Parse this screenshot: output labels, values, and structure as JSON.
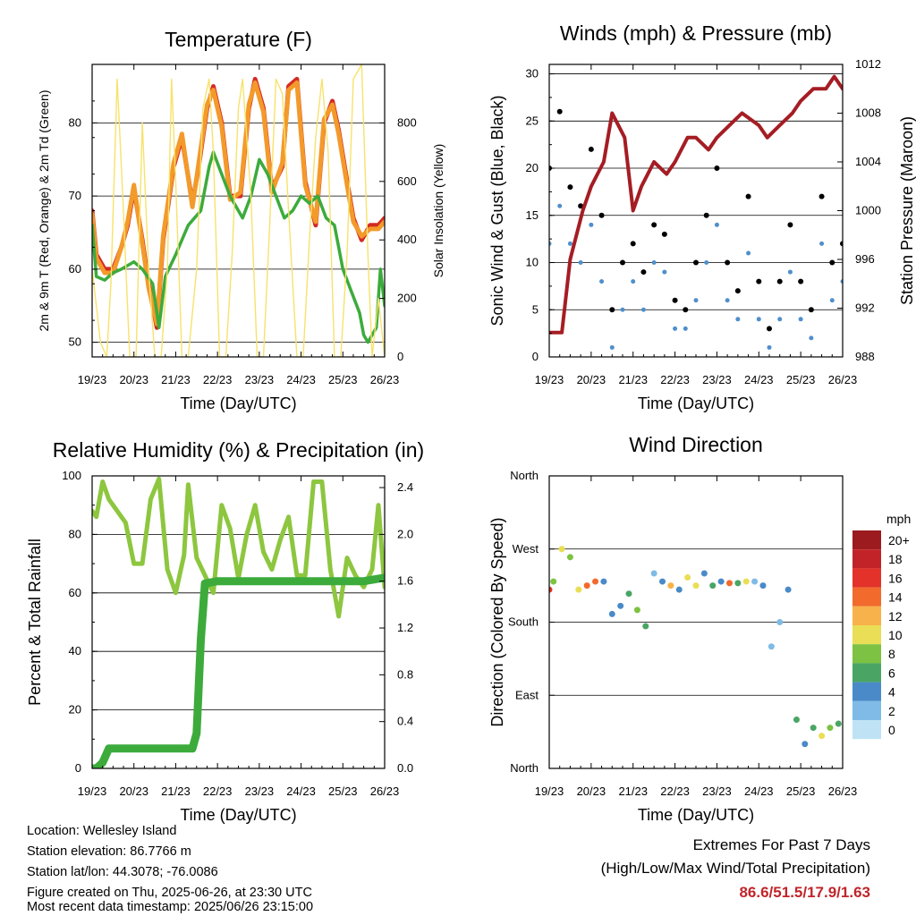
{
  "info": {
    "location": "Location: Wellesley Island",
    "elevation": "Station elevation: 86.7766 m",
    "latlon": "Station lat/lon: 44.3078; -76.0086",
    "created": "Figure created on Thu, 2025-06-26, at 23:30 UTC",
    "recent": "Most recent data timestamp: 2025/06/26 23:15:00"
  },
  "extremes": {
    "title": "Extremes For Past 7 Days",
    "subtitle": "(High/Low/Max Wind/Total Precipitation)",
    "values": "86.6/51.5/17.9/1.63",
    "color": "#c0252a"
  },
  "chart_data": [
    {
      "type": "line",
      "title": "Temperature (F)",
      "xlabel": "Time (Day/UTC)",
      "ylabel": "2m & 9m T (Red, Orange) & 2m Td (Green)",
      "y2label": "Solar Insolation (Yellow)",
      "categories": [
        "19/23",
        "20/23",
        "21/23",
        "22/23",
        "23/23",
        "24/23",
        "25/23",
        "26/23"
      ],
      "ylim": [
        48,
        88
      ],
      "yticks": [
        "50",
        "60",
        "70",
        "80"
      ],
      "y2lim": [
        0,
        1000
      ],
      "y2ticks": [
        "0",
        "200",
        "400",
        "600",
        "800"
      ],
      "grid": true,
      "series": [
        {
          "color": "#d42a22",
          "x": [
            0,
            0.1,
            0.3,
            0.5,
            0.7,
            0.85,
            1.0,
            1.2,
            1.35,
            1.55,
            1.7,
            1.95,
            2.15,
            2.4,
            2.55,
            2.75,
            2.9,
            3.1,
            3.3,
            3.55,
            3.75,
            3.9,
            4.1,
            4.3,
            4.55,
            4.7,
            4.9,
            5.1,
            5.35,
            5.55,
            5.75,
            5.9,
            6.1,
            6.25,
            6.45,
            6.65,
            6.85,
            7.0
          ],
          "y": [
            68,
            62,
            60,
            60,
            63,
            66,
            71,
            64,
            58,
            52,
            64,
            74,
            78,
            69,
            74,
            82,
            85,
            80,
            70,
            70,
            82,
            86,
            82,
            71,
            74,
            85,
            86,
            72,
            66,
            80,
            83,
            79,
            72,
            67,
            64,
            66,
            66,
            67
          ]
        },
        {
          "color": "#f39a2a",
          "x": [
            0,
            0.1,
            0.3,
            0.5,
            0.7,
            0.85,
            1.0,
            1.2,
            1.35,
            1.55,
            1.7,
            1.95,
            2.15,
            2.4,
            2.55,
            2.75,
            2.9,
            3.1,
            3.3,
            3.55,
            3.75,
            3.9,
            4.1,
            4.3,
            4.55,
            4.7,
            4.9,
            5.1,
            5.35,
            5.55,
            5.75,
            5.9,
            6.1,
            6.25,
            6.45,
            6.65,
            6.85,
            7.0
          ],
          "y": [
            67.5,
            61.5,
            59.5,
            59.5,
            63,
            66.5,
            71.5,
            63.5,
            57.5,
            52.5,
            64.5,
            74.5,
            78.5,
            68.5,
            74.5,
            82.5,
            84.5,
            79.5,
            69.5,
            70.5,
            82.5,
            85.5,
            81.5,
            70.5,
            74.5,
            84.5,
            85.5,
            71.5,
            66.5,
            80.5,
            82.5,
            78.5,
            71.5,
            66.5,
            64.5,
            65.5,
            65.5,
            66.5
          ]
        },
        {
          "color": "#3cab3c",
          "x": [
            0,
            0.1,
            0.3,
            0.5,
            0.7,
            1.0,
            1.2,
            1.45,
            1.6,
            1.75,
            2.0,
            2.3,
            2.6,
            2.8,
            2.9,
            3.1,
            3.3,
            3.6,
            3.8,
            4.0,
            4.2,
            4.4,
            4.6,
            4.8,
            5.0,
            5.2,
            5.4,
            5.6,
            5.8,
            6.0,
            6.2,
            6.4,
            6.5,
            6.6,
            6.8,
            6.9,
            7.0
          ],
          "y": [
            66,
            59,
            58.5,
            59.5,
            60,
            61,
            60,
            58,
            52,
            59,
            62,
            66,
            68,
            74,
            76,
            73,
            70,
            67,
            70,
            75,
            73,
            70,
            67,
            68,
            70,
            69,
            70,
            67,
            66,
            60,
            57,
            54,
            51,
            50,
            52,
            60,
            55
          ]
        },
        {
          "color": "#f7e26b",
          "axis": 2,
          "x": [
            0,
            0.2,
            0.35,
            0.45,
            0.6,
            0.75,
            0.9,
            1.05,
            1.2,
            1.35,
            1.5,
            1.65,
            1.8,
            1.9,
            2.0,
            2.15,
            2.3,
            2.5,
            2.65,
            2.8,
            2.9,
            3.05,
            3.2,
            3.35,
            3.5,
            3.6,
            3.8,
            3.95,
            4.1,
            4.25,
            4.4,
            4.55,
            4.7,
            4.9,
            5.05,
            5.2,
            5.35,
            5.5,
            5.65,
            5.8,
            5.95,
            6.1,
            6.25,
            6.45,
            6.6,
            6.7,
            6.85,
            7.0
          ],
          "y": [
            300,
            50,
            0,
            250,
            950,
            500,
            0,
            0,
            800,
            300,
            0,
            0,
            300,
            950,
            600,
            0,
            0,
            300,
            850,
            950,
            700,
            0,
            0,
            350,
            850,
            950,
            550,
            0,
            0,
            450,
            950,
            900,
            500,
            0,
            0,
            400,
            750,
            950,
            700,
            0,
            0,
            350,
            950,
            1000,
            350,
            0,
            200,
            0
          ]
        }
      ]
    },
    {
      "type": "scatter",
      "title": "Winds (mph) & Pressure (mb)",
      "xlabel": "Time (Day/UTC)",
      "ylabel": "Sonic Wind & Gust (Blue, Black)",
      "y2label": "Station Pressure (Maroon)",
      "categories": [
        "19/23",
        "20/23",
        "21/23",
        "22/23",
        "23/23",
        "24/23",
        "25/23",
        "26/23"
      ],
      "ylim": [
        0,
        31
      ],
      "yticks": [
        "0",
        "5",
        "10",
        "15",
        "20",
        "25",
        "30"
      ],
      "y2lim": [
        988,
        1012
      ],
      "y2ticks": [
        "988",
        "992",
        "996",
        "1000",
        "1004",
        "1008",
        "1012"
      ],
      "grid": true,
      "series": [
        {
          "name": "Gust",
          "color": "#000000",
          "x": [
            0,
            0.25,
            0.5,
            0.75,
            1.0,
            1.25,
            1.5,
            1.75,
            2.0,
            2.25,
            2.5,
            2.75,
            3.0,
            3.25,
            3.5,
            3.75,
            4.0,
            4.25,
            4.5,
            4.75,
            5.0,
            5.25,
            5.5,
            5.75,
            6.0,
            6.25,
            6.5,
            6.75,
            7.0
          ],
          "y": [
            20,
            26,
            18,
            16,
            22,
            15,
            5,
            10,
            12,
            9,
            14,
            13,
            6,
            5,
            10,
            15,
            20,
            10,
            7,
            17,
            8,
            3,
            8,
            14,
            8,
            5,
            17,
            10,
            12
          ]
        },
        {
          "name": "Wind",
          "color": "#4f8fcb",
          "x": [
            0,
            0.25,
            0.5,
            0.75,
            1.0,
            1.25,
            1.5,
            1.75,
            2.0,
            2.25,
            2.5,
            2.75,
            3.0,
            3.25,
            3.5,
            3.75,
            4.0,
            4.25,
            4.5,
            4.75,
            5.0,
            5.25,
            5.5,
            5.75,
            6.0,
            6.25,
            6.5,
            6.75,
            7.0
          ],
          "y": [
            12,
            16,
            12,
            10,
            14,
            8,
            1,
            5,
            8,
            5,
            10,
            9,
            3,
            3,
            6,
            10,
            14,
            6,
            4,
            11,
            4,
            1,
            4,
            9,
            4,
            2,
            12,
            6,
            8
          ]
        },
        {
          "name": "Pressure",
          "color": "#a51d24",
          "axis": 2,
          "x": [
            0,
            0.3,
            0.5,
            0.8,
            1.0,
            1.3,
            1.5,
            1.8,
            2.0,
            2.2,
            2.5,
            2.8,
            3.0,
            3.3,
            3.5,
            3.8,
            4.0,
            4.3,
            4.6,
            5.0,
            5.2,
            5.5,
            5.8,
            6.0,
            6.3,
            6.6,
            6.8,
            7.0
          ],
          "y": [
            990,
            990,
            996,
            1000,
            1002,
            1004,
            1008,
            1006,
            1000,
            1002,
            1004,
            1003,
            1004,
            1006,
            1006,
            1005,
            1006,
            1007,
            1008,
            1007,
            1006,
            1007,
            1008,
            1009,
            1010,
            1010,
            1011,
            1010
          ]
        }
      ]
    },
    {
      "type": "line",
      "title": "Relative Humidity (%) & Precipitation (in)",
      "xlabel": "Time (Day/UTC)",
      "ylabel": "Percent & Total Rainfall",
      "categories": [
        "19/23",
        "20/23",
        "21/23",
        "22/23",
        "23/23",
        "24/23",
        "25/23",
        "26/23"
      ],
      "ylim": [
        0,
        100
      ],
      "yticks": [
        "0",
        "20",
        "40",
        "60",
        "80",
        "100"
      ],
      "y2lim": [
        0.0,
        2.5
      ],
      "y2ticks": [
        "0.0",
        "0.4",
        "0.8",
        "1.2",
        "1.6",
        "2.0",
        "2.4"
      ],
      "grid": true,
      "series": [
        {
          "name": "Relative Humidity",
          "color": "#8dc63f",
          "x": [
            0,
            0.1,
            0.25,
            0.4,
            0.6,
            0.8,
            1.0,
            1.2,
            1.4,
            1.6,
            1.8,
            2.0,
            2.2,
            2.3,
            2.5,
            2.7,
            2.9,
            3.1,
            3.3,
            3.5,
            3.7,
            3.9,
            4.1,
            4.3,
            4.5,
            4.7,
            4.9,
            5.1,
            5.3,
            5.5,
            5.7,
            5.9,
            6.1,
            6.3,
            6.5,
            6.7,
            6.85,
            7.0
          ],
          "y": [
            88,
            86,
            98,
            92,
            88,
            84,
            70,
            70,
            92,
            99,
            68,
            60,
            73,
            97,
            72,
            66,
            60,
            90,
            82,
            65,
            80,
            90,
            74,
            68,
            78,
            86,
            66,
            66,
            98,
            98,
            68,
            52,
            72,
            66,
            62,
            68,
            90,
            62
          ]
        },
        {
          "name": "Total Rainfall",
          "color": "#3cab3c",
          "axis": 2,
          "x": [
            0,
            0.1,
            0.25,
            0.4,
            0.6,
            1.0,
            1.5,
            2.0,
            2.2,
            2.4,
            2.5,
            2.6,
            2.7,
            3.0,
            4.0,
            5.0,
            6.0,
            6.5,
            7.0
          ],
          "y": [
            0.0,
            0.0,
            0.05,
            0.17,
            0.17,
            0.17,
            0.17,
            0.17,
            0.17,
            0.17,
            0.3,
            1.1,
            1.58,
            1.6,
            1.6,
            1.6,
            1.6,
            1.6,
            1.63
          ]
        }
      ]
    },
    {
      "type": "scatter",
      "title": "Wind Direction",
      "xlabel": "Time (Day/UTC)",
      "ylabel": "Direction (Colored By Speed)",
      "categories": [
        "19/23",
        "20/23",
        "21/23",
        "22/23",
        "23/23",
        "24/23",
        "25/23",
        "26/23"
      ],
      "ylim": [
        0,
        360
      ],
      "yticks": [
        "North",
        "East",
        "South",
        "West",
        "North"
      ],
      "legend": {
        "title": "mph",
        "labels": [
          "0",
          "2",
          "4",
          "6",
          "8",
          "10",
          "12",
          "14",
          "16",
          "18",
          "20+"
        ],
        "colors": [
          "#bfe3f5",
          "#7fbbe6",
          "#4a8ac8",
          "#4aa564",
          "#7dc242",
          "#e9de55",
          "#f7b24b",
          "#f26a2c",
          "#e2322a",
          "#c12328",
          "#9b1b1e"
        ],
        "placement": "right"
      },
      "series": [
        {
          "x": [
            0,
            0.1,
            0.3,
            0.5,
            0.7,
            0.9,
            1.1,
            1.3,
            1.5,
            1.7,
            1.9,
            2.1,
            2.3,
            2.5,
            2.7,
            2.9,
            3.1,
            3.3,
            3.5,
            3.7,
            3.9,
            4.1,
            4.3,
            4.5,
            4.7,
            4.9,
            5.1,
            5.3,
            5.5,
            5.7,
            5.9,
            6.1,
            6.3,
            6.5,
            6.7,
            6.9
          ],
          "y": [
            220,
            230,
            270,
            260,
            220,
            225,
            230,
            230,
            190,
            200,
            215,
            195,
            175,
            240,
            230,
            225,
            220,
            235,
            225,
            240,
            225,
            230,
            228,
            228,
            230,
            230,
            225,
            150,
            180,
            220,
            60,
            30,
            50,
            40,
            50,
            55
          ],
          "speed": [
            16,
            9,
            10,
            9,
            11,
            14,
            14,
            4,
            5,
            4,
            6,
            8,
            7,
            3,
            5,
            12,
            4,
            11,
            10,
            4,
            6,
            4,
            15,
            6,
            10,
            3,
            5,
            2,
            2,
            4,
            6,
            4,
            6,
            10,
            9,
            6
          ]
        }
      ]
    }
  ]
}
